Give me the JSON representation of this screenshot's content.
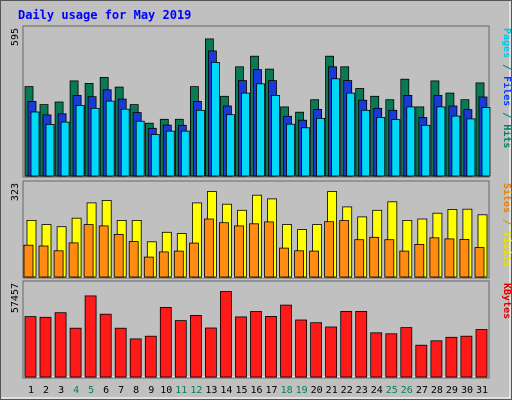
{
  "chart_data": {
    "type": "bar",
    "title": "Daily usage for May 2019",
    "days": [
      "1",
      "2",
      "3",
      "4",
      "5",
      "6",
      "7",
      "8",
      "9",
      "10",
      "11",
      "12",
      "13",
      "14",
      "15",
      "16",
      "17",
      "18",
      "19",
      "20",
      "21",
      "22",
      "23",
      "24",
      "25",
      "26",
      "27",
      "28",
      "29",
      "30",
      "31"
    ],
    "weekend_days": [
      "4",
      "5",
      "11",
      "12",
      "18",
      "19",
      "25",
      "26"
    ],
    "panels": [
      {
        "name": "top",
        "ymax_label": "595",
        "ymax": 595,
        "series_label_parts": [
          {
            "text": "Pages",
            "color": "#00c8e8"
          },
          {
            "text": " / ",
            "color": "#008080"
          },
          {
            "text": "Files",
            "color": "#0040ff"
          },
          {
            "text": " / ",
            "color": "#008080"
          },
          {
            "text": "Hits",
            "color": "#008060"
          }
        ],
        "series": [
          {
            "name": "Hits",
            "color": "#0a7a55",
            "values": [
              388,
              310,
              321,
              413,
              402,
              428,
              386,
              310,
              229,
              246,
              246,
              388,
              595,
              346,
              474,
              520,
              464,
              300,
              277,
              331,
              520,
              474,
              380,
              346,
              331,
              420,
              300,
              413,
              360,
              331,
              404
            ]
          },
          {
            "name": "Files",
            "color": "#1a3ad8",
            "values": [
              324,
              265,
              270,
              350,
              344,
              374,
              334,
              275,
              207,
              221,
              220,
              324,
              543,
              304,
              414,
              462,
              414,
              259,
              242,
              289,
              474,
              414,
              329,
              294,
              285,
              350,
              254,
              350,
              304,
              288,
              343
            ]
          },
          {
            "name": "Pages",
            "color": "#00d8f8",
            "values": [
              278,
              224,
              234,
              306,
              294,
              325,
              290,
              238,
              180,
              195,
              195,
              285,
              493,
              266,
              360,
              400,
              350,
              225,
              209,
              250,
              422,
              360,
              285,
              254,
              245,
              300,
              220,
              300,
              260,
              248,
              297
            ]
          }
        ]
      },
      {
        "name": "middle",
        "ymax_label": "323",
        "ymax": 323,
        "series_label_parts": [
          {
            "text": "Sites",
            "color": "#e88000"
          },
          {
            "text": " / ",
            "color": "#c0a000"
          },
          {
            "text": "Visits",
            "color": "#e8e000"
          }
        ],
        "series": [
          {
            "name": "Visits",
            "color": "#ffff00",
            "values": [
              214,
              198,
              190,
              222,
              280,
              289,
              214,
              214,
              133,
              169,
              164,
              280,
              323,
              275,
              252,
              309,
              295,
              198,
              179,
              198,
              323,
              265,
              227,
              252,
              284,
              214,
              219,
              241,
              255,
              256,
              235
            ]
          },
          {
            "name": "Sites",
            "color": "#ff8c10",
            "values": [
              120,
              117,
              99,
              129,
              198,
              193,
              161,
              134,
              75,
              95,
              98,
              128,
              219,
              205,
              193,
              201,
              208,
              109,
              99,
              98,
              209,
              213,
              141,
              150,
              141,
              98,
              123,
              148,
              144,
              142,
              111
            ]
          }
        ]
      },
      {
        "name": "bottom",
        "ymax_label": "57457",
        "ymax": 57457,
        "series_label_parts": [
          {
            "text": "KBytes",
            "color": "#e00000"
          }
        ],
        "series": [
          {
            "name": "KBytes",
            "color": "#ff1a1a",
            "values": [
              40600,
              40100,
              43200,
              32800,
              54500,
              42200,
              32800,
              25600,
              27400,
              46800,
              37900,
              41400,
              32900,
              57457,
              40400,
              44000,
              40700,
              48300,
              38300,
              36500,
              33600,
              44100,
              44100,
              29700,
              29000,
              33200,
              21400,
              24300,
              26700,
              27400,
              31900
            ]
          }
        ]
      }
    ],
    "colors": {
      "background": "#c0c0c0",
      "title": "#0000ff",
      "weekday_label": "#000000",
      "weekend_label": "#00805a"
    }
  }
}
